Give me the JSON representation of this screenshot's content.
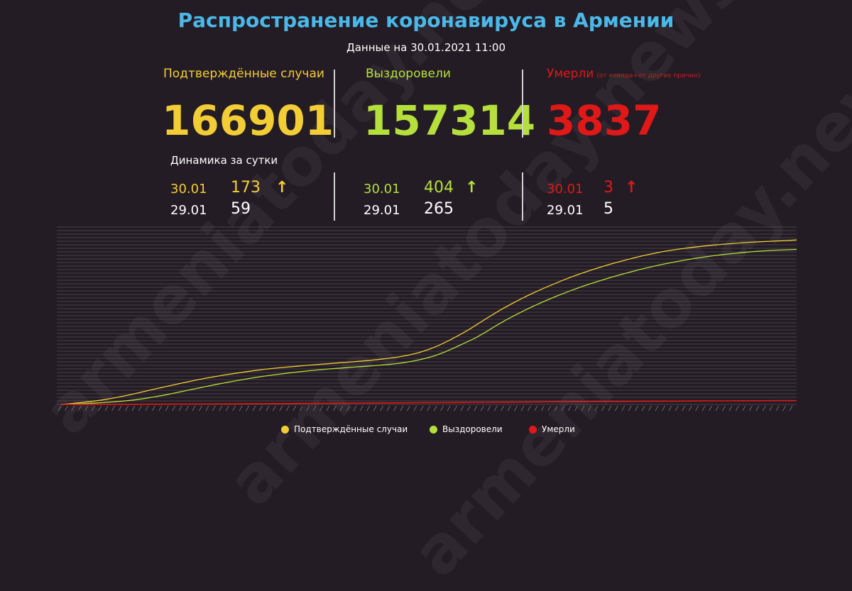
{
  "header": {
    "title": "Распространение коронавируса в Армении",
    "subtitle": "Данные на 30.01.2021 11:00"
  },
  "stats": {
    "confirmed": {
      "label": "Подтверждённые случаи",
      "total": "166901",
      "color": "#f3cd35"
    },
    "recovered": {
      "label": "Выздоровели",
      "total": "157314",
      "color": "#b5e03b"
    },
    "deaths": {
      "label": "Умерли",
      "note": "(от ковида+от других причин)",
      "total": "3837",
      "color": "#e01818"
    }
  },
  "dynamics": {
    "title": "Динамика за сутки",
    "confirmed": {
      "today_date": "30.01",
      "today_value": "173",
      "prev_date": "29.01",
      "prev_value": "59"
    },
    "recovered": {
      "today_date": "30.01",
      "today_value": "404",
      "prev_date": "29.01",
      "prev_value": "265"
    },
    "deaths": {
      "today_date": "30.01",
      "today_value": "3",
      "prev_date": "29.01",
      "prev_value": "5"
    },
    "arrow_symbol": "↑"
  },
  "watermark": "armeniatoday.news",
  "chart_data": {
    "type": "line",
    "x_tick_count": 110,
    "grid": true,
    "legend_position": "bottom",
    "series": [
      {
        "name": "Подтверждённые случаи",
        "color": "#f3cd35",
        "values": [
          0,
          900,
          1900,
          3100,
          4500,
          6200,
          8200,
          10400,
          12800,
          15200,
          17500,
          19800,
          22000,
          24200,
          26300,
          28100,
          29900,
          31500,
          33000,
          34400,
          35700,
          36800,
          37800,
          38700,
          39600,
          40400,
          41200,
          42000,
          42800,
          43600,
          44500,
          45500,
          46700,
          48200,
          50000,
          52500,
          55800,
          60000,
          65000,
          70500,
          76500,
          83000,
          89500,
          95800,
          101500,
          107000,
          112000,
          116800,
          121200,
          125500,
          129500,
          133200,
          136700,
          140000,
          143000,
          145800,
          148500,
          151000,
          153200,
          155200,
          156900,
          158300,
          159600,
          160800,
          161800,
          162700,
          163500,
          164200,
          164800,
          165300,
          165800,
          166300,
          166901
        ]
      },
      {
        "name": "Выздоровели",
        "color": "#b5e03b",
        "values": [
          0,
          300,
          700,
          1200,
          1800,
          2500,
          3400,
          4500,
          5900,
          7600,
          9500,
          11600,
          13800,
          16000,
          18200,
          20300,
          22300,
          24200,
          26000,
          27700,
          29200,
          30600,
          31900,
          33100,
          34200,
          35200,
          36100,
          36900,
          37700,
          38400,
          39200,
          40000,
          41000,
          42300,
          44000,
          46200,
          49200,
          53000,
          57600,
          62500,
          67500,
          73500,
          80000,
          86000,
          91500,
          96800,
          101700,
          106300,
          110600,
          114700,
          118500,
          122100,
          125500,
          128700,
          131700,
          134500,
          137200,
          139700,
          142000,
          144100,
          146100,
          147900,
          149500,
          150900,
          152200,
          153300,
          154300,
          155200,
          155900,
          156500,
          156900,
          157314
        ]
      },
      {
        "name": "Умерли",
        "color": "#e01818",
        "values": [
          0,
          20,
          50,
          90,
          140,
          200,
          270,
          350,
          440,
          540,
          650,
          770,
          890,
          1010,
          1130,
          1250,
          1370,
          1490,
          1610,
          1730,
          1850,
          1970,
          2090,
          2210,
          2330,
          2450,
          2570,
          2690,
          2810,
          2930,
          3050,
          3170,
          3290,
          3410,
          3530,
          3620,
          3700,
          3760,
          3800,
          3837
        ]
      }
    ]
  }
}
